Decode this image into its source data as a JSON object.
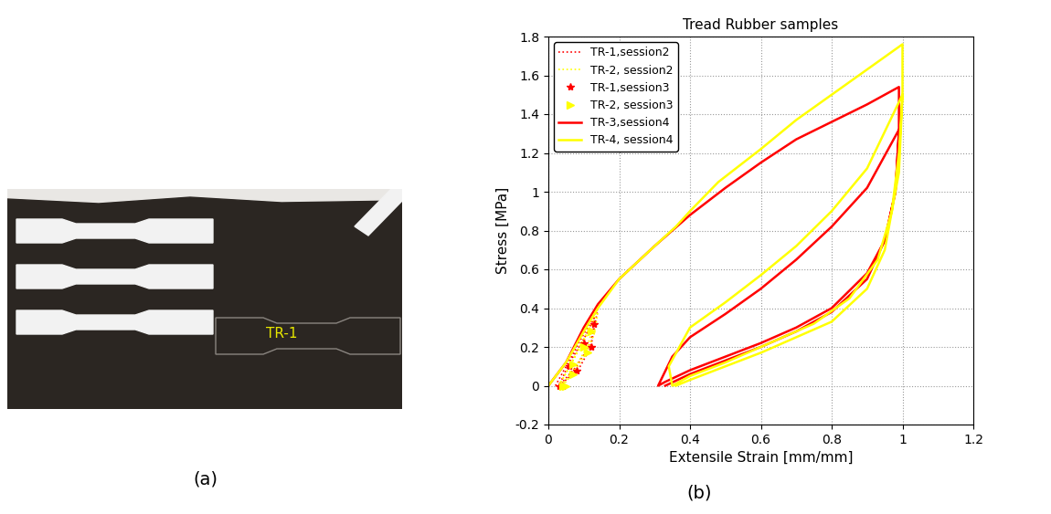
{
  "chart_data": {
    "type": "line",
    "title": "Tread Rubber samples",
    "x_label": "Extensile Strain [mm/mm]",
    "y_label": "Stress [MPa]",
    "caption": "(b)",
    "xlim": [
      0,
      1.2
    ],
    "xticks": [
      0,
      0.2,
      0.4,
      0.6,
      0.8,
      1,
      1.2
    ],
    "ylim": [
      -0.2,
      1.8
    ],
    "yticks": [
      -0.2,
      0,
      0.2,
      0.4,
      0.6,
      0.8,
      1,
      1.2,
      1.4,
      1.6,
      1.8
    ],
    "grid": true,
    "legend": "upper left",
    "series": [
      {
        "name": "TR-1,session2",
        "color": "#ff0000",
        "line_style": "dotted",
        "marker": "none",
        "x": [
          0.02,
          0.05,
          0.08,
          0.11,
          0.14,
          0.13,
          0.12,
          0.09,
          0.05,
          0.03,
          0.06,
          0.1,
          0.13,
          0.12,
          0.08,
          0.04
        ],
        "values": [
          0,
          0.1,
          0.2,
          0.3,
          0.4,
          0.3,
          0.2,
          0.1,
          0.03,
          0,
          0.12,
          0.24,
          0.35,
          0.22,
          0.1,
          0.02
        ]
      },
      {
        "name": "TR-2, session2",
        "color": "#ffff00",
        "line_style": "dotted",
        "marker": "none",
        "x": [
          0.03,
          0.06,
          0.09,
          0.12,
          0.14,
          0.13,
          0.11,
          0.08,
          0.05,
          0.03,
          0.07,
          0.1,
          0.13,
          0.11,
          0.07,
          0.04
        ],
        "values": [
          0,
          0.1,
          0.21,
          0.31,
          0.38,
          0.27,
          0.18,
          0.09,
          0.02,
          0,
          0.13,
          0.23,
          0.33,
          0.2,
          0.08,
          0.01
        ]
      },
      {
        "name": "TR-1,session3",
        "color": "#ff0000",
        "line_style": "none",
        "marker": "star",
        "x": [
          0.03,
          0.06,
          0.1,
          0.13,
          0.12,
          0.08,
          0.04
        ],
        "values": [
          0,
          0.1,
          0.22,
          0.32,
          0.2,
          0.08,
          0
        ]
      },
      {
        "name": "TR-2, session3",
        "color": "#ffff00",
        "line_style": "none",
        "marker": "triangle_right",
        "x": [
          0.04,
          0.07,
          0.1,
          0.12,
          0.11,
          0.07,
          0.05
        ],
        "values": [
          0,
          0.11,
          0.2,
          0.28,
          0.17,
          0.06,
          0
        ]
      },
      {
        "name": "TR-3,session4",
        "color": "#ff0000",
        "line_style": "solid",
        "marker": "none",
        "x": [
          0,
          0.05,
          0.1,
          0.14,
          0.2,
          0.3,
          0.4,
          0.5,
          0.6,
          0.7,
          0.8,
          0.9,
          0.99,
          0.99,
          0.98,
          0.95,
          0.9,
          0.8,
          0.7,
          0.6,
          0.5,
          0.4,
          0.33,
          0.31,
          0.35,
          0.4,
          0.5,
          0.6,
          0.7,
          0.8,
          0.9,
          0.99,
          0.98,
          0.95,
          0.9,
          0.8,
          0.7,
          0.6,
          0.5,
          0.4,
          0.33
        ],
        "values": [
          0,
          0.12,
          0.3,
          0.42,
          0.55,
          0.72,
          0.88,
          1.02,
          1.15,
          1.27,
          1.36,
          1.45,
          1.54,
          1.3,
          1.0,
          0.75,
          0.58,
          0.4,
          0.3,
          0.22,
          0.15,
          0.08,
          0.02,
          0,
          0.15,
          0.25,
          0.37,
          0.5,
          0.65,
          0.82,
          1.02,
          1.32,
          1.0,
          0.75,
          0.55,
          0.38,
          0.28,
          0.2,
          0.13,
          0.06,
          0
        ]
      },
      {
        "name": "TR-4, session4",
        "color": "#ffff00",
        "line_style": "solid",
        "marker": "none",
        "x": [
          0,
          0.05,
          0.1,
          0.14,
          0.2,
          0.3,
          0.36,
          0.4,
          0.48,
          0.6,
          0.7,
          0.8,
          0.9,
          1.0,
          1.0,
          0.99,
          0.97,
          0.93,
          0.85,
          0.75,
          0.6,
          0.5,
          0.4,
          0.35,
          0.34,
          0.4,
          0.5,
          0.6,
          0.7,
          0.8,
          0.9,
          1.0,
          0.99,
          0.95,
          0.9,
          0.8,
          0.7,
          0.6,
          0.5,
          0.4,
          0.36
        ],
        "values": [
          0,
          0.12,
          0.28,
          0.4,
          0.55,
          0.72,
          0.82,
          0.9,
          1.05,
          1.22,
          1.37,
          1.5,
          1.63,
          1.76,
          1.5,
          1.2,
          0.9,
          0.65,
          0.45,
          0.32,
          0.2,
          0.12,
          0.05,
          0,
          0.1,
          0.3,
          0.43,
          0.57,
          0.72,
          0.9,
          1.12,
          1.5,
          1.1,
          0.7,
          0.5,
          0.33,
          0.25,
          0.17,
          0.1,
          0.03,
          0
        ]
      }
    ]
  },
  "image": {
    "caption": "(a)",
    "label": "TR-1"
  }
}
